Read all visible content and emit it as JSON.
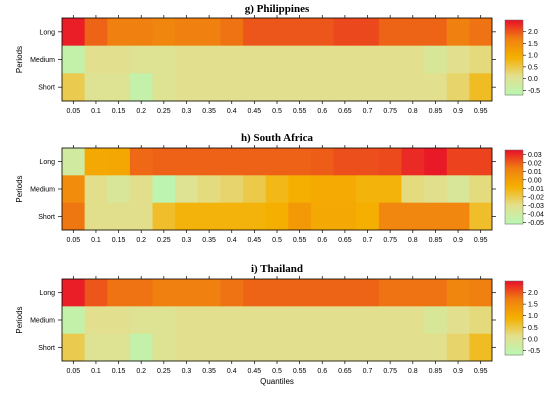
{
  "colors": {
    "scale_low": "#b9f7b3",
    "scale_mid_low": "#e2e08e",
    "scale_mid": "#f5b000",
    "scale_high": "#f08010",
    "scale_top": "#e8102a",
    "frame": "#000000"
  },
  "chart_data": [
    {
      "type": "heatmap",
      "title": "g) Philippines",
      "xlabel": "",
      "ylabel": "Periods",
      "rows": [
        "Long",
        "Medium",
        "Short"
      ],
      "columns": [
        "0.05",
        "0.1",
        "0.15",
        "0.2",
        "0.25",
        "0.3",
        "0.35",
        "0.4",
        "0.45",
        "0.5",
        "0.55",
        "0.6",
        "0.65",
        "0.7",
        "0.75",
        "0.8",
        "0.85",
        "0.9",
        "0.95"
      ],
      "values": [
        [
          2.4,
          1.9,
          1.7,
          1.7,
          1.6,
          1.7,
          1.7,
          1.8,
          2.0,
          2.0,
          2.0,
          2.0,
          2.1,
          2.1,
          1.9,
          1.9,
          1.9,
          1.7,
          1.8
        ],
        [
          -0.5,
          0.1,
          0.1,
          0.0,
          0.0,
          0.1,
          0.1,
          0.1,
          0.1,
          0.1,
          0.1,
          0.1,
          0.1,
          0.1,
          0.1,
          0.1,
          -0.1,
          0.1,
          0.2
        ],
        [
          0.45,
          0.0,
          0.0,
          -0.5,
          0.0,
          0.1,
          0.1,
          0.1,
          0.1,
          0.1,
          0.1,
          0.1,
          0.1,
          0.1,
          0.1,
          0.1,
          0.1,
          0.3,
          0.7
        ]
      ],
      "legend": {
        "position": "right",
        "min": -0.7,
        "max": 2.5,
        "ticks": [
          "2.0",
          "1.5",
          "1.0",
          "0.5",
          "0.0",
          "-0.5"
        ],
        "tick_values": [
          2.0,
          1.5,
          1.0,
          0.5,
          0.0,
          -0.5
        ]
      }
    },
    {
      "type": "heatmap",
      "title": "h) South Africa",
      "xlabel": "",
      "ylabel": "Periods",
      "rows": [
        "Long",
        "Medium",
        "Short"
      ],
      "columns": [
        "0.05",
        "0.1",
        "0.15",
        "0.2",
        "0.25",
        "0.3",
        "0.35",
        "0.4",
        "0.45",
        "0.5",
        "0.55",
        "0.6",
        "0.65",
        "0.7",
        "0.75",
        "0.8",
        "0.85",
        "0.9",
        "0.95"
      ],
      "values": [
        [
          -0.04,
          -0.005,
          -0.004,
          0.018,
          0.019,
          0.019,
          0.019,
          0.019,
          0.019,
          0.019,
          0.019,
          0.02,
          0.023,
          0.023,
          0.024,
          0.03,
          0.033,
          0.025,
          0.025
        ],
        [
          0.008,
          -0.03,
          -0.036,
          -0.03,
          -0.05,
          -0.033,
          -0.028,
          -0.025,
          -0.02,
          -0.012,
          -0.008,
          -0.006,
          -0.006,
          -0.01,
          -0.01,
          -0.028,
          -0.03,
          -0.036,
          -0.028
        ],
        [
          0.015,
          -0.03,
          -0.03,
          -0.03,
          -0.015,
          -0.01,
          -0.01,
          -0.01,
          -0.01,
          -0.008,
          0.002,
          -0.005,
          -0.005,
          -0.008,
          0.01,
          0.01,
          0.01,
          0.01,
          -0.015
        ]
      ],
      "legend": {
        "position": "right",
        "min": -0.052,
        "max": 0.035,
        "ticks": [
          "0.03",
          "0.02",
          "0.01",
          "0.00",
          "-0.01",
          "-0.02",
          "-0.03",
          "-0.04",
          "-0.05"
        ],
        "tick_values": [
          0.03,
          0.02,
          0.01,
          0.0,
          -0.01,
          -0.02,
          -0.03,
          -0.04,
          -0.05
        ]
      }
    },
    {
      "type": "heatmap",
      "title": "i) Thailand",
      "xlabel": "Quantiles",
      "ylabel": "Periods",
      "rows": [
        "Long",
        "Medium",
        "Short"
      ],
      "columns": [
        "0.05",
        "0.1",
        "0.15",
        "0.2",
        "0.25",
        "0.3",
        "0.35",
        "0.4",
        "0.45",
        "0.5",
        "0.55",
        "0.6",
        "0.65",
        "0.7",
        "0.75",
        "0.8",
        "0.85",
        "0.9",
        "0.95"
      ],
      "values": [
        [
          2.4,
          2.0,
          1.8,
          1.8,
          1.7,
          1.7,
          1.7,
          1.8,
          1.9,
          1.9,
          1.9,
          1.9,
          1.9,
          1.9,
          1.8,
          1.8,
          1.8,
          1.6,
          1.7
        ],
        [
          -0.5,
          0.1,
          0.1,
          0.0,
          0.0,
          0.1,
          0.1,
          0.1,
          0.1,
          0.1,
          0.1,
          0.1,
          0.1,
          0.1,
          0.1,
          0.1,
          -0.1,
          0.1,
          0.2
        ],
        [
          0.45,
          0.0,
          0.0,
          -0.5,
          0.0,
          0.1,
          0.1,
          0.1,
          0.1,
          0.1,
          0.1,
          0.1,
          0.1,
          0.1,
          0.1,
          0.1,
          0.1,
          0.3,
          0.7
        ]
      ],
      "legend": {
        "position": "right",
        "min": -0.7,
        "max": 2.5,
        "ticks": [
          "2.0",
          "1.5",
          "1.0",
          "0.5",
          "0.0",
          "-0.5"
        ],
        "tick_values": [
          2.0,
          1.5,
          1.0,
          0.5,
          0.0,
          -0.5
        ]
      }
    }
  ]
}
